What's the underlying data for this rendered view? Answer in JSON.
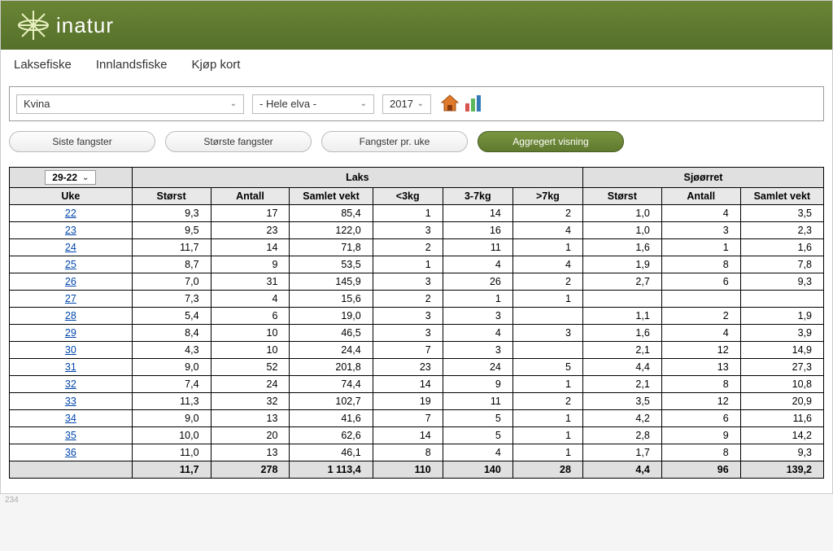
{
  "brand": "inatur",
  "menu": {
    "items": [
      "Laksefiske",
      "Innlandsfiske",
      "Kjøp kort"
    ]
  },
  "filter": {
    "river": "Kvina",
    "stretch": "- Hele elva -",
    "year": "2017"
  },
  "views": {
    "latest": "Siste fangster",
    "biggest": "Største fangster",
    "per_week": "Fangster pr. uke",
    "aggregate": "Aggregert visning"
  },
  "week_dropdown": "29-22",
  "headers": {
    "uke_group": "Uke",
    "laks": "Laks",
    "sjorret": "Sjøørret",
    "storst": "Størst",
    "antall": "Antall",
    "samlet": "Samlet vekt",
    "lt3": "<3kg",
    "b37": "3-7kg",
    "gt7": ">7kg"
  },
  "rows": [
    {
      "uke": "22",
      "l_st": "9,3",
      "l_an": "17",
      "l_sv": "85,4",
      "l3": "1",
      "l37": "14",
      "l7": "2",
      "s_st": "1,0",
      "s_an": "4",
      "s_sv": "3,5"
    },
    {
      "uke": "23",
      "l_st": "9,5",
      "l_an": "23",
      "l_sv": "122,0",
      "l3": "3",
      "l37": "16",
      "l7": "4",
      "s_st": "1,0",
      "s_an": "3",
      "s_sv": "2,3"
    },
    {
      "uke": "24",
      "l_st": "11,7",
      "l_an": "14",
      "l_sv": "71,8",
      "l3": "2",
      "l37": "11",
      "l7": "1",
      "s_st": "1,6",
      "s_an": "1",
      "s_sv": "1,6"
    },
    {
      "uke": "25",
      "l_st": "8,7",
      "l_an": "9",
      "l_sv": "53,5",
      "l3": "1",
      "l37": "4",
      "l7": "4",
      "s_st": "1,9",
      "s_an": "8",
      "s_sv": "7,8"
    },
    {
      "uke": "26",
      "l_st": "7,0",
      "l_an": "31",
      "l_sv": "145,9",
      "l3": "3",
      "l37": "26",
      "l7": "2",
      "s_st": "2,7",
      "s_an": "6",
      "s_sv": "9,3"
    },
    {
      "uke": "27",
      "l_st": "7,3",
      "l_an": "4",
      "l_sv": "15,6",
      "l3": "2",
      "l37": "1",
      "l7": "1",
      "s_st": "",
      "s_an": "",
      "s_sv": ""
    },
    {
      "uke": "28",
      "l_st": "5,4",
      "l_an": "6",
      "l_sv": "19,0",
      "l3": "3",
      "l37": "3",
      "l7": "",
      "s_st": "1,1",
      "s_an": "2",
      "s_sv": "1,9"
    },
    {
      "uke": "29",
      "l_st": "8,4",
      "l_an": "10",
      "l_sv": "46,5",
      "l3": "3",
      "l37": "4",
      "l7": "3",
      "s_st": "1,6",
      "s_an": "4",
      "s_sv": "3,9"
    },
    {
      "uke": "30",
      "l_st": "4,3",
      "l_an": "10",
      "l_sv": "24,4",
      "l3": "7",
      "l37": "3",
      "l7": "",
      "s_st": "2,1",
      "s_an": "12",
      "s_sv": "14,9"
    },
    {
      "uke": "31",
      "l_st": "9,0",
      "l_an": "52",
      "l_sv": "201,8",
      "l3": "23",
      "l37": "24",
      "l7": "5",
      "s_st": "4,4",
      "s_an": "13",
      "s_sv": "27,3"
    },
    {
      "uke": "32",
      "l_st": "7,4",
      "l_an": "24",
      "l_sv": "74,4",
      "l3": "14",
      "l37": "9",
      "l7": "1",
      "s_st": "2,1",
      "s_an": "8",
      "s_sv": "10,8"
    },
    {
      "uke": "33",
      "l_st": "11,3",
      "l_an": "32",
      "l_sv": "102,7",
      "l3": "19",
      "l37": "11",
      "l7": "2",
      "s_st": "3,5",
      "s_an": "12",
      "s_sv": "20,9"
    },
    {
      "uke": "34",
      "l_st": "9,0",
      "l_an": "13",
      "l_sv": "41,6",
      "l3": "7",
      "l37": "5",
      "l7": "1",
      "s_st": "4,2",
      "s_an": "6",
      "s_sv": "11,6"
    },
    {
      "uke": "35",
      "l_st": "10,0",
      "l_an": "20",
      "l_sv": "62,6",
      "l3": "14",
      "l37": "5",
      "l7": "1",
      "s_st": "2,8",
      "s_an": "9",
      "s_sv": "14,2"
    },
    {
      "uke": "36",
      "l_st": "11,0",
      "l_an": "13",
      "l_sv": "46,1",
      "l3": "8",
      "l37": "4",
      "l7": "1",
      "s_st": "1,7",
      "s_an": "8",
      "s_sv": "9,3"
    }
  ],
  "totals": {
    "l_st": "11,7",
    "l_an": "278",
    "l_sv": "1 113,4",
    "l3": "110",
    "l37": "140",
    "l7": "28",
    "s_st": "4,4",
    "s_an": "96",
    "s_sv": "139,2"
  },
  "page_num": "234",
  "colors": {
    "header_green": "#5f7a2f",
    "active_green_top": "#7a9540",
    "link": "#0046aa",
    "th_bg": "#e0e0e0"
  }
}
